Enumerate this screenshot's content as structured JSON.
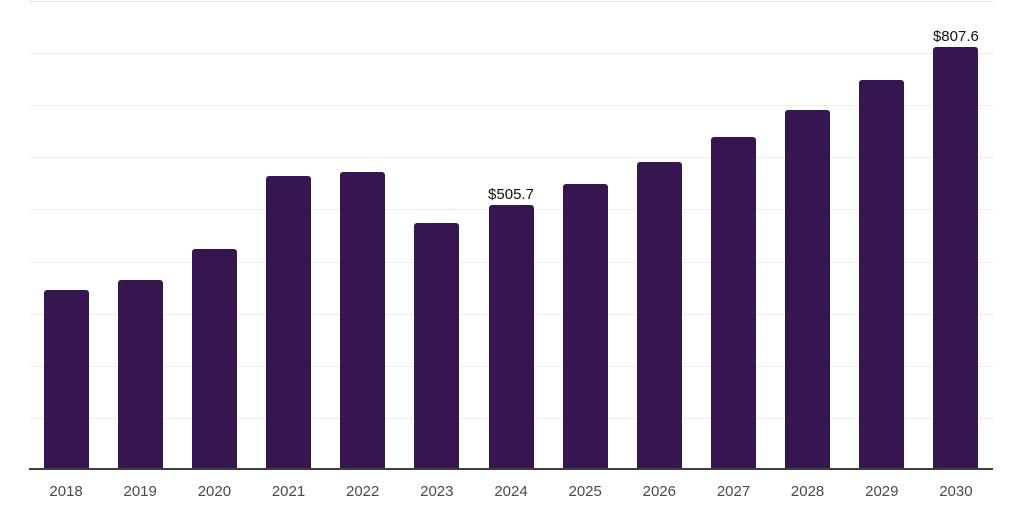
{
  "chart_data": {
    "type": "bar",
    "title": "",
    "xlabel": "",
    "ylabel": "",
    "categories": [
      "2018",
      "2019",
      "2020",
      "2021",
      "2022",
      "2023",
      "2024",
      "2025",
      "2026",
      "2027",
      "2028",
      "2029",
      "2030"
    ],
    "values": [
      342.2,
      361.4,
      420.3,
      559.8,
      568.1,
      470.2,
      505.7,
      545.6,
      586.6,
      635.2,
      687.0,
      745.2,
      807.6
    ],
    "data_labels": [
      null,
      null,
      null,
      null,
      null,
      null,
      "$505.7",
      null,
      null,
      null,
      null,
      null,
      "$807.6"
    ],
    "ylim": [
      0,
      900
    ],
    "grid_step": 100,
    "grid": true,
    "legend_position": "none",
    "colors": {
      "bar": "#361650",
      "gridline": "#ededed",
      "top_gridline": "#e6e6e6",
      "axis_line": "#3f3f3f",
      "tick_label": "#4a4a4a",
      "data_label": "#111111",
      "background": "#ffffff"
    }
  },
  "layout_note": "no y-axis tick labels visible; values shown only for 2024 and 2030"
}
